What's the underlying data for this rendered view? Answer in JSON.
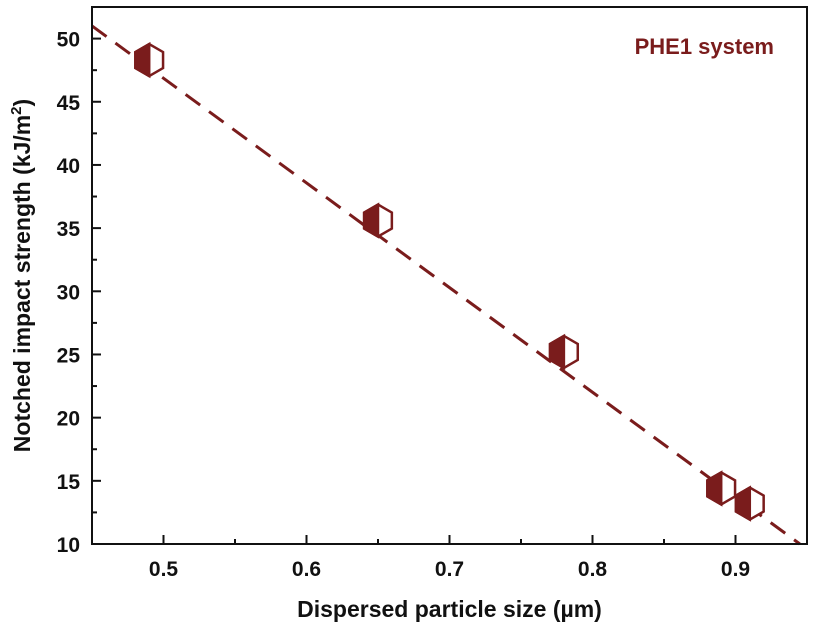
{
  "chart_data": {
    "type": "scatter",
    "title": "",
    "annotation": "PHE1 system",
    "xlabel": "Dispersed particle size (µm)",
    "ylabel_main": "Notched impact strength (kJ/m",
    "ylabel_sup": "2",
    "ylabel_close": ")",
    "xlim": [
      0.45,
      0.95
    ],
    "ylim": [
      10,
      52.5
    ],
    "x_ticks": [
      0.5,
      0.6,
      0.7,
      0.8,
      0.9
    ],
    "x_tick_labels": [
      "0.5",
      "0.6",
      "0.7",
      "0.8",
      "0.9"
    ],
    "y_ticks": [
      10,
      15,
      20,
      25,
      30,
      35,
      40,
      45,
      50
    ],
    "y_tick_labels": [
      "10",
      "15",
      "20",
      "25",
      "30",
      "35",
      "40",
      "45",
      "50"
    ],
    "grid": false,
    "series": [
      {
        "marker": "half-filled-hexagon",
        "x": [
          0.49,
          0.65,
          0.78,
          0.89,
          0.91
        ],
        "y": [
          48.3,
          35.6,
          25.2,
          14.4,
          13.2
        ]
      }
    ],
    "fit_line": {
      "style": "dashed",
      "x": [
        0.45,
        0.945
      ],
      "y": [
        51.0,
        10.0
      ]
    },
    "colors": {
      "marker": "#7a1c1c",
      "line": "#7a1c1c",
      "annotation": "#7a1c1c",
      "axis": "#111111"
    }
  }
}
